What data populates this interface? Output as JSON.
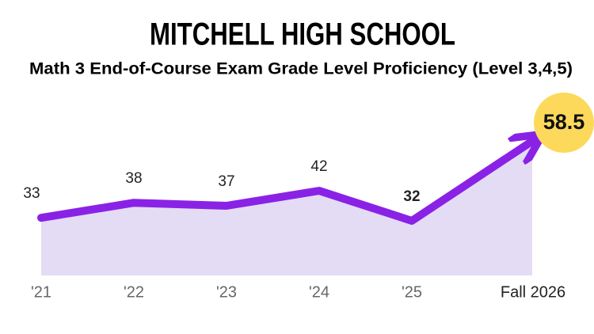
{
  "chart_data": {
    "type": "line",
    "title": "MITCHELL HIGH SCHOOL",
    "subtitle": "Math 3 End-of-Course Exam Grade Level Proficiency (Level 3,4,5)",
    "categories": [
      "'21",
      "'22",
      "'23",
      "'24",
      "'25",
      "Fall 2026"
    ],
    "values": [
      33,
      38,
      37,
      42,
      32,
      58.5
    ],
    "color": "#8a22e6",
    "area_color": "#e3dcf4",
    "highlight_color": "#fcd95a"
  }
}
